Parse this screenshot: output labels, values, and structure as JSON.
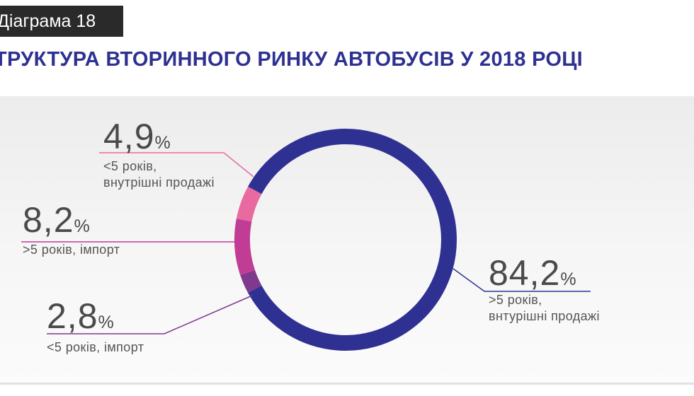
{
  "header": {
    "tag": "Діаграма 18",
    "title": "ТРУКТУРА ВТОРИННОГО РИНКУ АВТОБУСІВ У 2018 РОЦІ"
  },
  "chart_data": {
    "type": "pie",
    "title": "ТРУКТУРА ВТОРИННОГО РИНКУ АВТОБУСІВ У 2018 РОЦІ",
    "unit": "%",
    "slices": [
      {
        "value": 84.2,
        "display": "84,2",
        "label_line1": ">5 років,",
        "label_line2": "внтурішні продажі",
        "color": "#2e3191"
      },
      {
        "value": 2.8,
        "display": "2,8",
        "label_line1": "<5 років, імпорт",
        "label_line2": "",
        "color": "#7f3a8e"
      },
      {
        "value": 8.2,
        "display": "8,2",
        "label_line1": ">5 років, імпорт",
        "label_line2": "",
        "color": "#c13c95"
      },
      {
        "value": 4.9,
        "display": "4,9",
        "label_line1": "<5 років,",
        "label_line2": "внутрішні продажі",
        "color": "#e96aa0"
      }
    ]
  }
}
